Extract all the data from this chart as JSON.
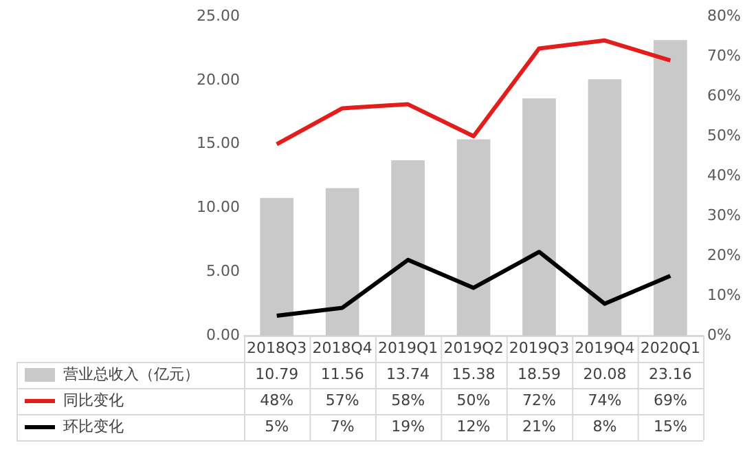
{
  "chart_data": {
    "type": "bar",
    "categories": [
      "2018Q3",
      "2018Q4",
      "2019Q1",
      "2019Q2",
      "2019Q3",
      "2019Q4",
      "2020Q1"
    ],
    "series": [
      {
        "name": "营业总收入（亿元）",
        "color": "#c9c9c9",
        "values": [
          10.79,
          11.56,
          13.74,
          15.38,
          18.59,
          20.08,
          23.16
        ],
        "value_labels": [
          "10.79",
          "11.56",
          "13.74",
          "15.38",
          "18.59",
          "20.08",
          "23.16"
        ]
      },
      {
        "name": "同比变化",
        "type": "line",
        "axis": "y2",
        "color": "#e31c1c",
        "values": [
          48,
          57,
          58,
          50,
          72,
          74,
          69
        ],
        "value_labels": [
          "48%",
          "57%",
          "58%",
          "50%",
          "72%",
          "74%",
          "69%"
        ]
      },
      {
        "name": "环比变化",
        "type": "line",
        "axis": "y2",
        "color": "#000000",
        "values": [
          5,
          7,
          19,
          12,
          21,
          8,
          15
        ],
        "value_labels": [
          "5%",
          "7%",
          "19%",
          "12%",
          "21%",
          "8%",
          "15%"
        ]
      }
    ],
    "ylim": [
      0,
      25
    ],
    "yticks": [
      {
        "value": 0,
        "label": "0.00"
      },
      {
        "value": 5,
        "label": "5.00"
      },
      {
        "value": 10,
        "label": "10.00"
      },
      {
        "value": 15,
        "label": "15.00"
      },
      {
        "value": 20,
        "label": "20.00"
      },
      {
        "value": 25,
        "label": "25.00"
      }
    ],
    "y2lim": [
      0,
      80
    ],
    "y2ticks": [
      {
        "value": 0,
        "label": "0%"
      },
      {
        "value": 10,
        "label": "10%"
      },
      {
        "value": 20,
        "label": "20%"
      },
      {
        "value": 30,
        "label": "30%"
      },
      {
        "value": 40,
        "label": "40%"
      },
      {
        "value": 50,
        "label": "50%"
      },
      {
        "value": 60,
        "label": "60%"
      },
      {
        "value": 70,
        "label": "70%"
      },
      {
        "value": 80,
        "label": "80%"
      }
    ],
    "grid": false,
    "legend": "bottom left",
    "marker": "none",
    "line_style": "solid"
  }
}
